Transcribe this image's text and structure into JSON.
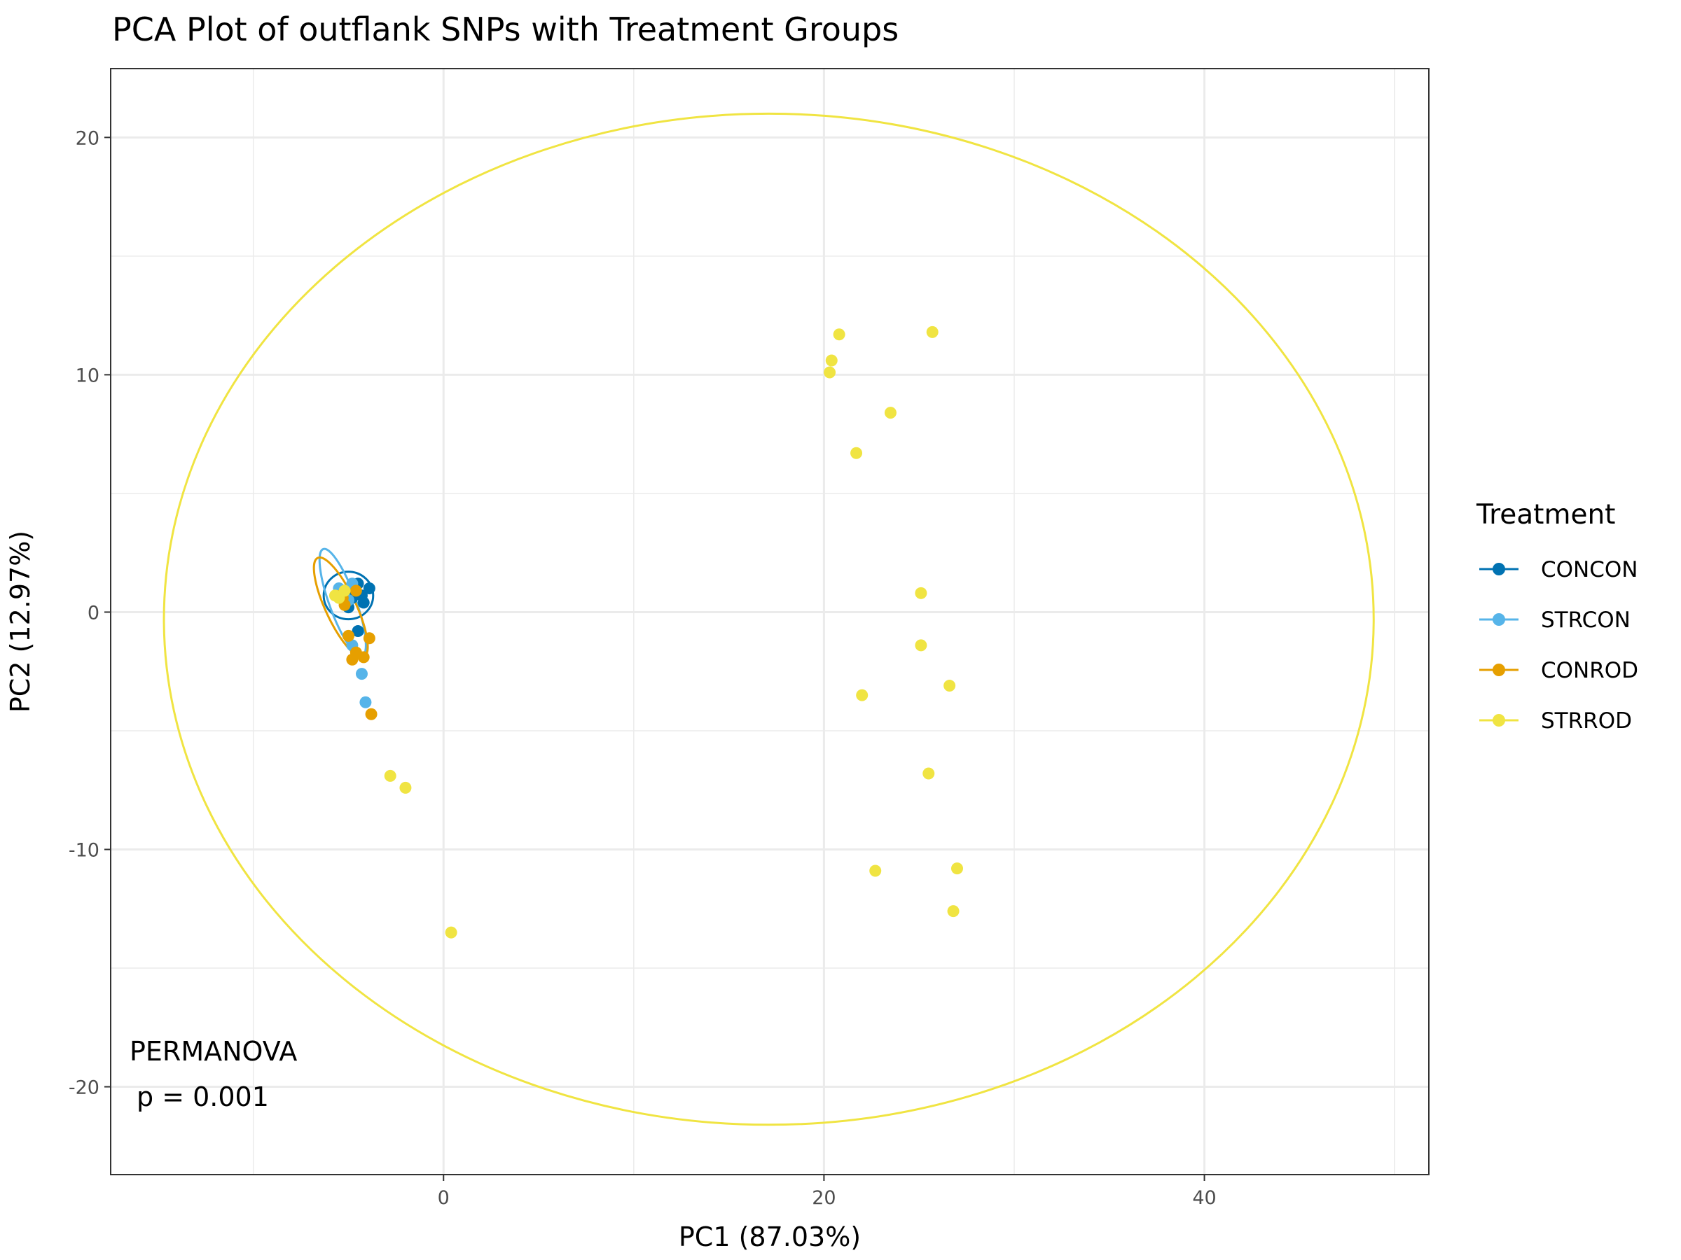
{
  "chart_data": {
    "type": "scatter",
    "title": "PCA Plot of outflank SNPs with Treatment Groups",
    "xlabel": "PC1 (87.03%)",
    "ylabel": "PC2 (12.97%)",
    "xlim": [
      -17.5,
      51.8
    ],
    "ylim": [
      -23.7,
      22.9
    ],
    "x_ticks": [
      0,
      20,
      40
    ],
    "y_ticks": [
      -20,
      -10,
      0,
      10,
      20
    ],
    "x_tick_labels": [
      "0",
      "20",
      "40"
    ],
    "y_tick_labels": [
      "-20",
      "-10",
      "0",
      "10",
      "20"
    ],
    "grid": true,
    "legend": {
      "title": "Treatment",
      "position": "right"
    },
    "series": [
      {
        "name": "CONCON",
        "color": "#0072B2",
        "points": [
          [
            -4.8,
            0.6
          ],
          [
            -4.5,
            1.2
          ],
          [
            -5.2,
            0.9
          ],
          [
            -4.2,
            0.4
          ],
          [
            -3.9,
            1.0
          ],
          [
            -4.5,
            -0.8
          ],
          [
            -5.0,
            0.2
          ],
          [
            -4.3,
            0.7
          ]
        ],
        "ellipse": {
          "cx": -5.0,
          "cy": 0.7,
          "rx": 1.3,
          "ry": 1.0,
          "angle": 0
        }
      },
      {
        "name": "STRCON",
        "color": "#56B4E9",
        "points": [
          [
            -5.5,
            1.0
          ],
          [
            -5.0,
            0.5
          ],
          [
            -4.8,
            1.2
          ],
          [
            -4.3,
            -2.6
          ],
          [
            -4.1,
            -3.8
          ],
          [
            -4.8,
            -1.4
          ],
          [
            -5.3,
            0.6
          ]
        ],
        "ellipse": {
          "cx": -5.3,
          "cy": 0.4,
          "rx": 0.7,
          "ry": 2.4,
          "angle": -20
        }
      },
      {
        "name": "CONROD",
        "color": "#E69F00",
        "points": [
          [
            -5.2,
            0.3
          ],
          [
            -5.4,
            0.7
          ],
          [
            -4.6,
            -1.7
          ],
          [
            -4.8,
            -2.0
          ],
          [
            -4.2,
            -1.9
          ],
          [
            -3.9,
            -1.1
          ],
          [
            -3.8,
            -4.3
          ],
          [
            -5.0,
            -1.0
          ],
          [
            -4.6,
            0.9
          ],
          [
            -5.3,
            0.6
          ]
        ],
        "ellipse": {
          "cx": -5.4,
          "cy": 0.2,
          "rx": 0.8,
          "ry": 2.3,
          "angle": -25
        }
      },
      {
        "name": "STRROD",
        "color": "#F0E442",
        "points": [
          [
            -5.7,
            0.7
          ],
          [
            -5.5,
            0.6
          ],
          [
            -5.2,
            0.9
          ],
          [
            -2.8,
            -6.9
          ],
          [
            -2.0,
            -7.4
          ],
          [
            0.4,
            -13.5
          ],
          [
            20.3,
            10.1
          ],
          [
            20.4,
            10.6
          ],
          [
            20.8,
            11.7
          ],
          [
            25.7,
            11.8
          ],
          [
            23.5,
            8.4
          ],
          [
            21.7,
            6.7
          ],
          [
            25.1,
            0.8
          ],
          [
            25.1,
            -1.4
          ],
          [
            26.6,
            -3.1
          ],
          [
            22.0,
            -3.5
          ],
          [
            25.5,
            -6.8
          ],
          [
            22.7,
            -10.9
          ],
          [
            27.0,
            -10.8
          ],
          [
            26.8,
            -12.6
          ]
        ],
        "ellipse": {
          "cx": 17.1,
          "cy": -0.3,
          "rx": 31.8,
          "ry": 21.3,
          "angle": 0
        }
      }
    ],
    "annotations": [
      "PERMANOVA",
      "p = 0.001"
    ]
  }
}
